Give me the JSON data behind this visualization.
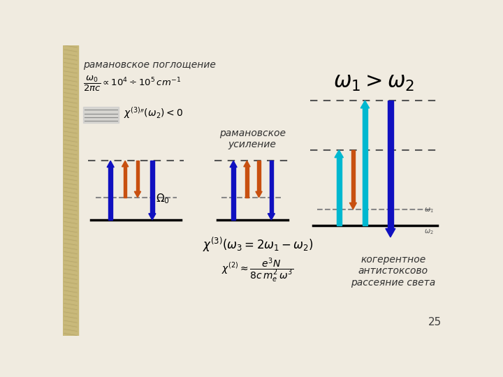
{
  "bg_color": "#f0ebe0",
  "white_area": "#ffffff",
  "title_text": "рамановское поглощение",
  "page_number": "25",
  "formula1": "$\\dfrac{\\omega_0}{2\\pi c} \\propto 10^4 \\div 10^5\\, cm^{-1}$",
  "formula2": "$\\chi^{(3)\\prime\\prime}(\\omega_2) < 0$",
  "formula3": "$\\chi^{(3)}\\left(\\omega_3 = 2\\omega_1 - \\omega_2\\right)$",
  "formula4": "$\\chi^{(2)} \\approx \\dfrac{e^3 N}{8c\\, m_e^2\\, \\omega^3}$",
  "omega_label": "$\\omega_1 > \\omega_2$",
  "omega0_label": "$\\Omega_0$",
  "raman_gain_label": "рамановское\nусиление",
  "cars_label": "когерентное\nантистоксово\nрассеяние света",
  "blue_color": "#1010c0",
  "orange_color": "#c85010",
  "cyan_color": "#00b8d0",
  "dashed_color": "#555555",
  "line_color": "#000000",
  "border_color": "#c8b878",
  "border_width": 28,
  "text_color": "#303030"
}
